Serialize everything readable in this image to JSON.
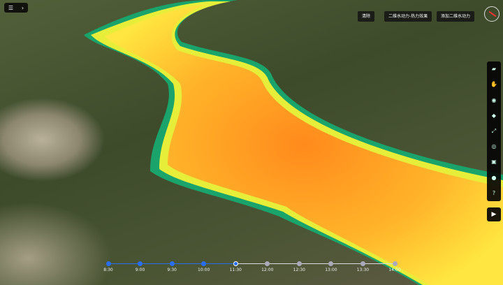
{
  "toolbar_top": {
    "buttons": [
      "清除",
      "二维水动力-热力效果",
      "添加二维水动力"
    ]
  },
  "menu": {
    "icon1": "menu-icon",
    "icon2": "chevron-right-icon"
  },
  "side_toolbar": {
    "icons": [
      "folder-icon",
      "hand-icon",
      "eye-icon",
      "layers-icon",
      "measure-icon",
      "location-icon",
      "camera-icon",
      "settings-icon",
      "help-icon"
    ],
    "help_label": "?"
  },
  "play_icon": "play-icon",
  "timeline": {
    "labels": [
      "8:30",
      "9:00",
      "9:30",
      "10:00",
      "11:30",
      "12:00",
      "12:30",
      "13:00",
      "13:30",
      "14:00"
    ],
    "current_index": 4,
    "colors": {
      "done": "#2a6ef0",
      "pending": "#aaaabb"
    }
  }
}
